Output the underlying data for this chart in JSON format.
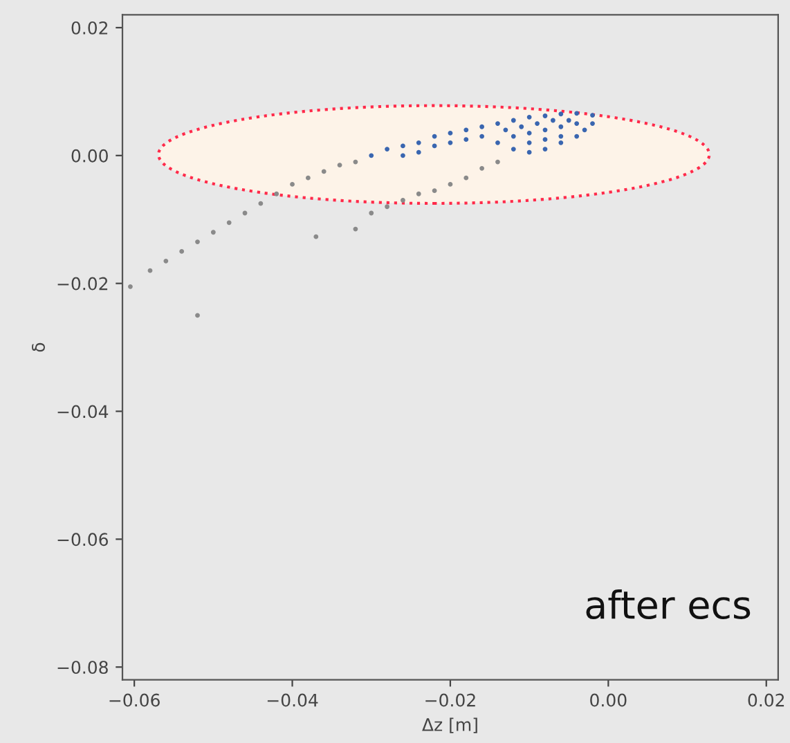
{
  "chart_data": {
    "type": "scatter",
    "xlabel": "Δz [m]",
    "ylabel": "δ",
    "annotations": [
      "after ecs"
    ],
    "xlim": [
      -0.0615,
      0.0215
    ],
    "ylim": [
      -0.082,
      0.022
    ],
    "xticks": [
      {
        "value": -0.06,
        "label": "−0.06"
      },
      {
        "value": -0.04,
        "label": "−0.04"
      },
      {
        "value": -0.02,
        "label": "−0.02"
      },
      {
        "value": 0,
        "label": "0.00"
      },
      {
        "value": 0.02,
        "label": "0.02"
      }
    ],
    "yticks": [
      {
        "value": -0.08,
        "label": "−0.08"
      },
      {
        "value": -0.06,
        "label": "−0.06"
      },
      {
        "value": -0.04,
        "label": "−0.04"
      },
      {
        "value": -0.02,
        "label": "−0.02"
      },
      {
        "value": 0,
        "label": "0.00"
      },
      {
        "value": 0.02,
        "label": "0.02"
      }
    ],
    "grid": false,
    "legend": false,
    "marker": "circle",
    "series": [
      {
        "color": "#8a8a8a",
        "x": [
          -0.0605,
          -0.058,
          -0.056,
          -0.054,
          -0.052,
          -0.05,
          -0.048,
          -0.046,
          -0.044,
          -0.042,
          -0.04,
          -0.038,
          -0.036,
          -0.034,
          -0.032,
          -0.03,
          -0.028,
          -0.026,
          -0.024,
          -0.022,
          -0.02,
          -0.018,
          -0.016,
          -0.014,
          -0.032,
          -0.052,
          -0.037
        ],
        "values": [
          -0.0205,
          -0.018,
          -0.0165,
          -0.015,
          -0.0135,
          -0.012,
          -0.0105,
          -0.009,
          -0.0075,
          -0.006,
          -0.0045,
          -0.0035,
          -0.0025,
          -0.0015,
          -0.001,
          -0.009,
          -0.008,
          -0.007,
          -0.006,
          -0.0055,
          -0.0045,
          -0.0035,
          -0.002,
          -0.001,
          -0.0115,
          -0.025,
          -0.0127
        ]
      },
      {
        "color": "#3a66b0",
        "x": [
          -0.03,
          -0.028,
          -0.026,
          -0.024,
          -0.022,
          -0.02,
          -0.018,
          -0.016,
          -0.014,
          -0.012,
          -0.01,
          -0.008,
          -0.006,
          -0.004,
          -0.002,
          -0.014,
          -0.012,
          -0.01,
          -0.008,
          -0.006,
          -0.004,
          -0.003,
          -0.012,
          -0.01,
          -0.008,
          -0.006,
          -0.004,
          -0.002,
          -0.01,
          -0.008,
          -0.006,
          -0.005,
          -0.007,
          -0.009,
          -0.011,
          -0.013,
          -0.016,
          -0.018,
          -0.02,
          -0.022,
          -0.024,
          -0.026
        ],
        "values": [
          0.0,
          0.001,
          0.0015,
          0.002,
          0.003,
          0.0035,
          0.004,
          0.0045,
          0.005,
          0.0055,
          0.006,
          0.0062,
          0.0065,
          0.0066,
          0.0063,
          0.002,
          0.001,
          0.0005,
          0.001,
          0.002,
          0.003,
          0.004,
          0.003,
          0.0035,
          0.004,
          0.0045,
          0.005,
          0.005,
          0.002,
          0.0025,
          0.003,
          0.0055,
          0.0055,
          0.005,
          0.0045,
          0.004,
          0.003,
          0.0025,
          0.002,
          0.0015,
          0.0005,
          0.0
        ]
      }
    ]
  }
}
